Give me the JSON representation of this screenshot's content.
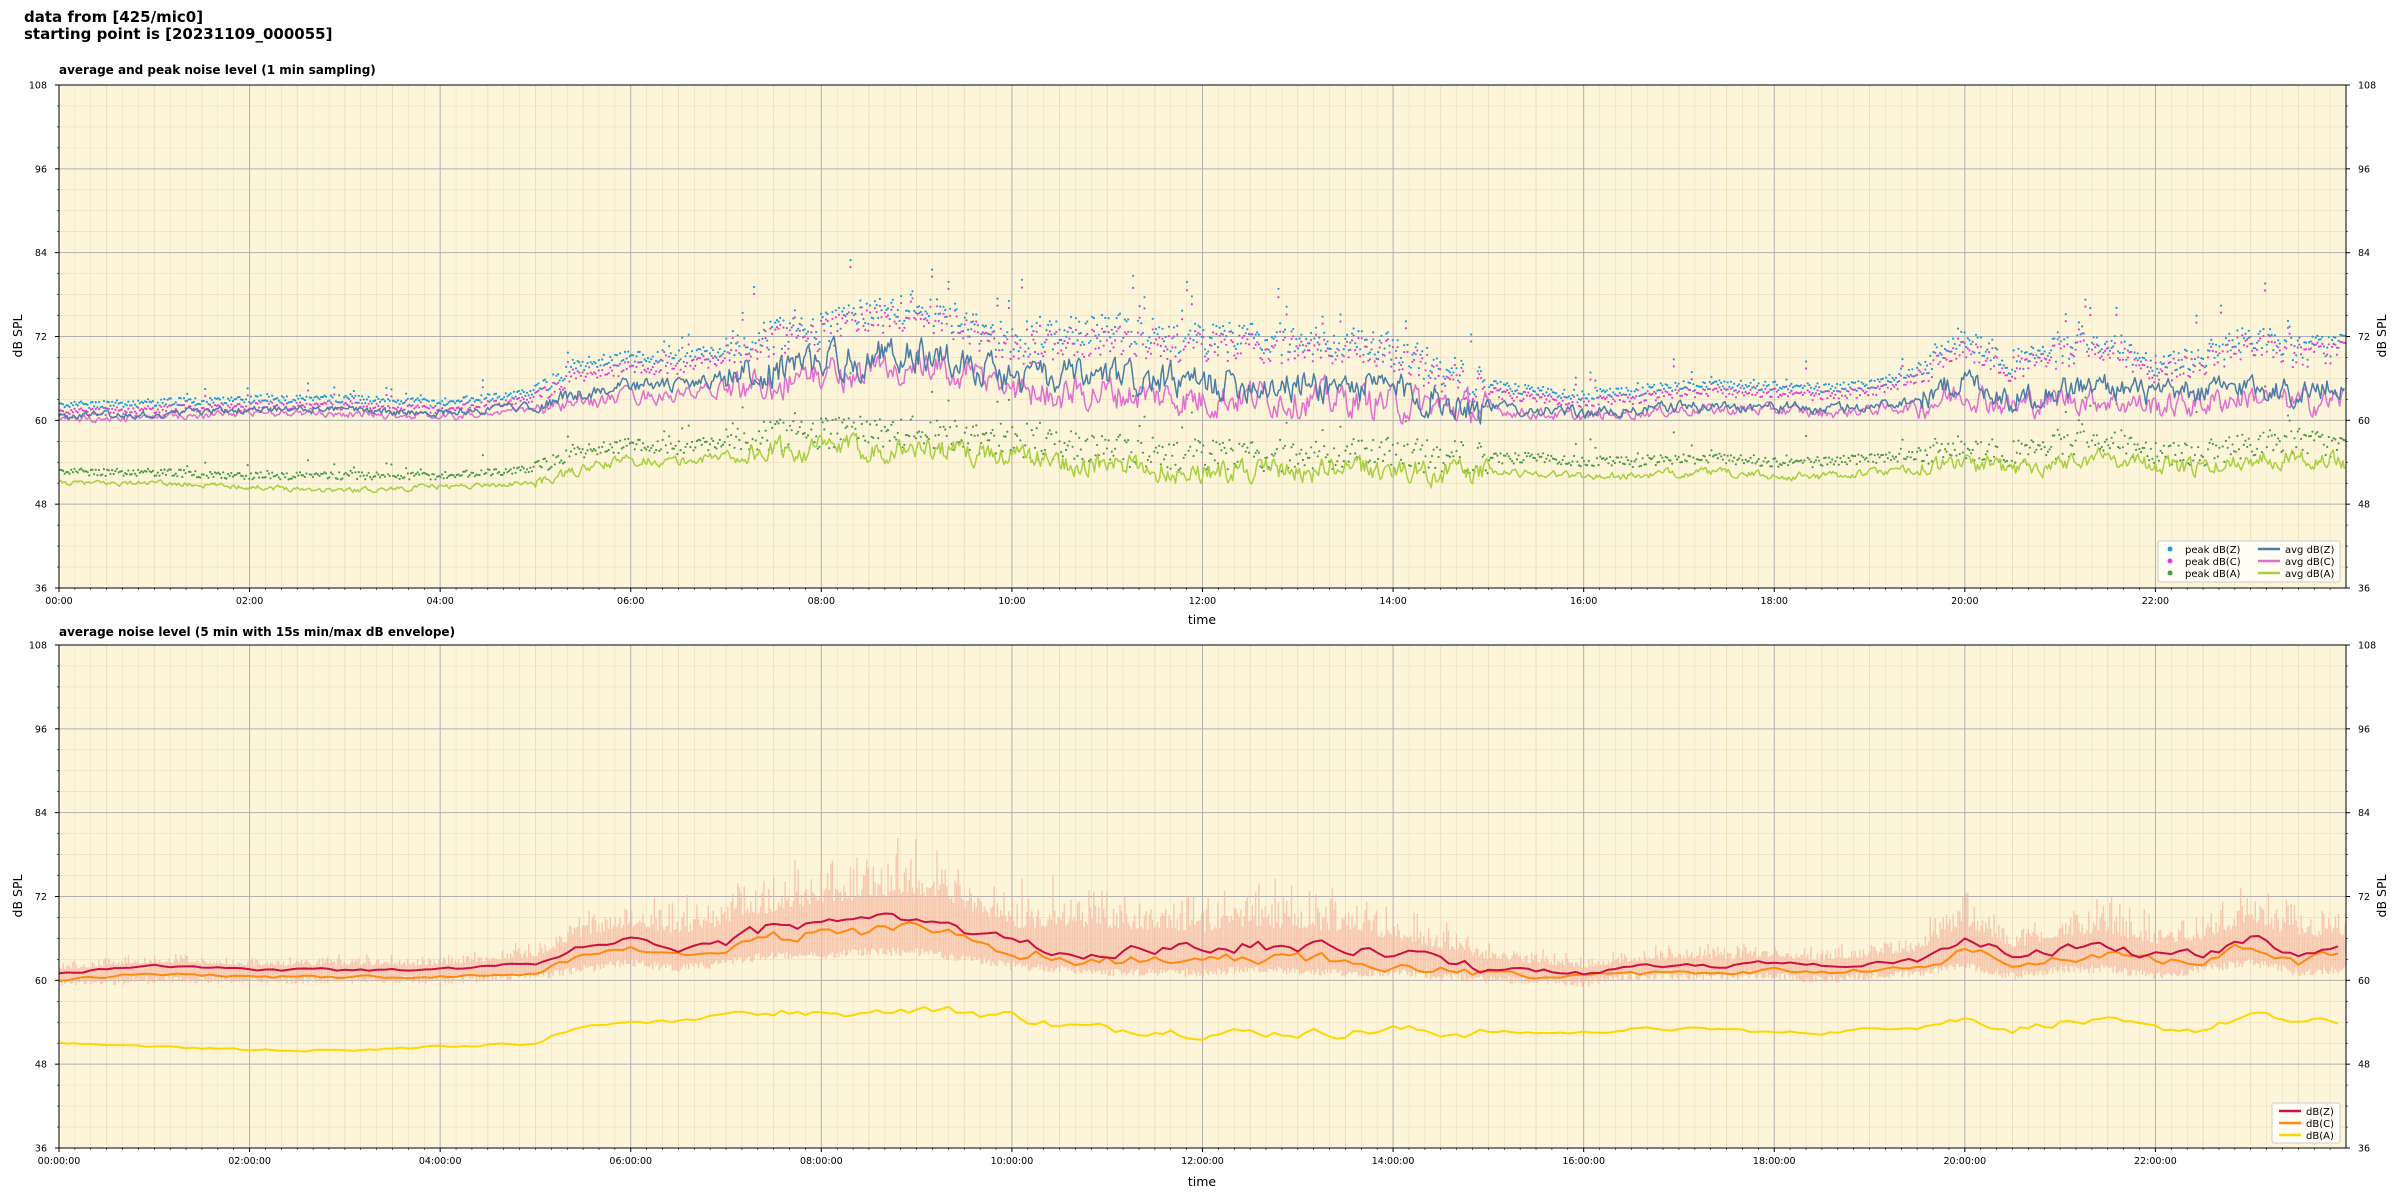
{
  "header": {
    "line1": "data from [425/mic0]",
    "line2": "starting point is [20231109_000055]"
  },
  "colors": {
    "plot_bg": "#fdf5da",
    "grid_major": "#b0b0b0",
    "grid_minor": "#e8dcb8",
    "peak_z": "#1f9bd7",
    "peak_c": "#e040d0",
    "peak_a": "#4a9a4a",
    "avg_z": "#4a7ea8",
    "avg_c": "#e070d0",
    "avg_a": "#a8d040",
    "env": "#f4b8a0",
    "line_z": "#cc1040",
    "line_c": "#ff8a10",
    "line_a": "#ffd700"
  },
  "chart_data": [
    {
      "type": "line",
      "title": "average and peak noise level (1 min sampling)",
      "xlabel": "time",
      "ylabel": "dB SPL",
      "ylim": [
        36,
        108
      ],
      "xlim_hours": [
        0,
        24
      ],
      "y_ticks": [
        "36",
        "48",
        "60",
        "72",
        "84",
        "96",
        "108"
      ],
      "x_ticks": [
        "00:00",
        "02:00",
        "04:00",
        "06:00",
        "08:00",
        "10:00",
        "12:00",
        "14:00",
        "16:00",
        "18:00",
        "20:00",
        "22:00"
      ],
      "grid": true,
      "legend_position": "bottom-right",
      "x_hours": [
        0,
        1,
        2,
        3,
        4,
        5,
        5.5,
        6,
        6.5,
        7,
        7.5,
        8,
        8.5,
        9,
        9.5,
        10,
        10.5,
        11,
        11.5,
        12,
        12.5,
        13,
        13.5,
        14,
        14.5,
        15,
        15.5,
        16,
        16.5,
        17,
        17.5,
        18,
        18.5,
        19,
        19.5,
        20,
        20.5,
        21,
        21.5,
        22,
        22.5,
        23,
        23.5,
        24
      ],
      "series": [
        {
          "name": "avg dB(Z)",
          "kind": "line",
          "values": [
            60.5,
            61,
            61.5,
            61.5,
            61,
            62,
            64,
            65,
            65,
            66,
            67,
            68.5,
            69,
            70,
            68.5,
            66,
            66,
            66,
            65.5,
            65,
            65.5,
            65,
            65,
            64.5,
            63,
            62,
            61.5,
            61,
            61.5,
            62,
            62,
            62,
            61.5,
            62,
            63,
            66,
            63,
            64.5,
            65,
            63.5,
            64,
            65,
            64,
            65
          ]
        },
        {
          "name": "avg dB(C)",
          "kind": "line",
          "values": [
            60,
            60.5,
            61,
            61,
            60.5,
            61.5,
            62.5,
            63.5,
            63.5,
            64.5,
            65.5,
            66.5,
            67,
            67.5,
            66.5,
            64.5,
            64,
            64,
            63.5,
            63,
            63.5,
            63,
            63,
            62.5,
            62,
            61.5,
            61,
            60.5,
            61,
            61.5,
            61.5,
            61.5,
            61,
            61.5,
            62,
            64,
            62,
            63,
            63,
            62,
            62.5,
            63.5,
            62.5,
            63
          ]
        },
        {
          "name": "avg dB(A)",
          "kind": "line",
          "values": [
            51,
            51,
            50.5,
            50,
            50.5,
            51,
            53,
            54.5,
            54,
            55,
            55.5,
            56,
            56,
            56,
            55.5,
            55,
            54,
            53.5,
            53,
            52.5,
            53,
            52.5,
            53,
            53,
            52.5,
            52.5,
            52.5,
            52,
            52,
            52.5,
            52.5,
            52,
            52,
            52.5,
            53,
            54,
            53,
            54,
            55,
            53.5,
            53,
            54.5,
            55,
            54
          ]
        },
        {
          "name": "peak dB(Z)",
          "kind": "scatter",
          "values": [
            62,
            62.5,
            63,
            63,
            62.5,
            64,
            68,
            69,
            69,
            70,
            72,
            73,
            75,
            76,
            74,
            71,
            72,
            73,
            72,
            71,
            72,
            71,
            71,
            70,
            67,
            65,
            64,
            63.5,
            64,
            65,
            65,
            65,
            64.5,
            65,
            67,
            72,
            68,
            70,
            71,
            68,
            69,
            72,
            70,
            71
          ]
        },
        {
          "name": "peak dB(C)",
          "kind": "scatter",
          "values": [
            61,
            61.5,
            62,
            62,
            61.5,
            63,
            66.5,
            67.5,
            67.5,
            69,
            71,
            72,
            74,
            75,
            73,
            70,
            70.5,
            71,
            70.5,
            70,
            70.5,
            70,
            70,
            69,
            66,
            64,
            63,
            62.5,
            63,
            64,
            64,
            64,
            63.5,
            64,
            66,
            70.5,
            67,
            69,
            70,
            67,
            68,
            71,
            69,
            70
          ]
        },
        {
          "name": "peak dB(A)",
          "kind": "scatter",
          "values": [
            52.5,
            52.5,
            52,
            52,
            52,
            53,
            55.5,
            56.5,
            56,
            57,
            57.5,
            58,
            58,
            58,
            57.5,
            57,
            56,
            55.5,
            55,
            54.5,
            55,
            54.5,
            55,
            55,
            54.5,
            54.5,
            54.5,
            54,
            54,
            54.5,
            54.5,
            54,
            54,
            54.5,
            55,
            56,
            55,
            56,
            57,
            55.5,
            55,
            56.5,
            57,
            56
          ]
        }
      ]
    },
    {
      "type": "line",
      "title": "average noise level (5 min with 15s min/max dB envelope)",
      "xlabel": "time",
      "ylabel": "dB SPL",
      "ylim": [
        36,
        108
      ],
      "xlim_hours": [
        0,
        24
      ],
      "y_ticks": [
        "36",
        "48",
        "60",
        "72",
        "84",
        "96",
        "108"
      ],
      "x_ticks": [
        "00:00:00",
        "02:00:00",
        "04:00:00",
        "06:00:00",
        "08:00:00",
        "10:00:00",
        "12:00:00",
        "14:00:00",
        "16:00:00",
        "18:00:00",
        "20:00:00",
        "22:00:00"
      ],
      "grid": true,
      "legend_position": "bottom-right",
      "x_hours": [
        0,
        1,
        2,
        3,
        4,
        5,
        5.5,
        6,
        6.5,
        7,
        7.5,
        8,
        8.5,
        9,
        9.5,
        10,
        10.5,
        11,
        11.5,
        12,
        12.5,
        13,
        13.5,
        14,
        14.5,
        15,
        15.5,
        16,
        16.5,
        17,
        17.5,
        18,
        18.5,
        19,
        19.5,
        20,
        20.5,
        21,
        21.5,
        22,
        22.5,
        23,
        23.5,
        24
      ],
      "series": [
        {
          "name": "dB(Z)",
          "kind": "line",
          "values": [
            61,
            62,
            61.5,
            61.5,
            61.5,
            62.5,
            65,
            66,
            64.5,
            65.5,
            67.5,
            68,
            68.5,
            69,
            67.5,
            65,
            64.5,
            64,
            64.5,
            64.5,
            65,
            64.5,
            64.5,
            63.5,
            63,
            62,
            61.5,
            61,
            62,
            62,
            62,
            62.5,
            62,
            62.5,
            63,
            66,
            63.5,
            64.5,
            64.5,
            63.5,
            64,
            66,
            64,
            65
          ]
        },
        {
          "name": "dB(C)",
          "kind": "line",
          "values": [
            60,
            61,
            60.5,
            60.5,
            60.5,
            61,
            63.5,
            64.5,
            63.5,
            64,
            66,
            66.5,
            67,
            67.5,
            66,
            64,
            63.5,
            63,
            63,
            63,
            63.5,
            63,
            63,
            62.5,
            62,
            61.5,
            60.5,
            60.5,
            61,
            61,
            61,
            61.5,
            61,
            61.5,
            62,
            64.5,
            62.5,
            63,
            63.5,
            62.5,
            63,
            65,
            62.5,
            64
          ]
        },
        {
          "name": "dB(A)",
          "kind": "line",
          "values": [
            51,
            50.5,
            50,
            50,
            50.5,
            51,
            53.5,
            54.5,
            54,
            55,
            55,
            55.5,
            55.5,
            56,
            55.5,
            55,
            53.5,
            53,
            53,
            52.5,
            52.5,
            52.5,
            52.5,
            53,
            52.5,
            52.5,
            52.5,
            52.5,
            53,
            53,
            53,
            52.5,
            52.5,
            53,
            53.5,
            54.5,
            53,
            54,
            54,
            53,
            53,
            55,
            54,
            54
          ]
        },
        {
          "name": "envelope max",
          "kind": "envelope",
          "values": [
            63,
            64,
            64,
            64,
            64,
            66,
            70,
            73,
            73,
            75,
            77,
            80,
            81,
            82,
            78,
            75,
            77,
            78,
            75,
            74,
            76,
            75,
            75,
            73,
            69,
            66,
            65,
            64,
            65,
            66,
            66,
            66,
            65,
            66,
            68,
            74,
            68,
            71,
            74,
            70,
            71,
            75,
            72,
            70
          ]
        },
        {
          "name": "envelope min",
          "kind": "envelope",
          "values": [
            59,
            59.5,
            59.5,
            59.5,
            59.5,
            60,
            61,
            62,
            61,
            62,
            63,
            63,
            63.5,
            63.5,
            62.5,
            61.5,
            61,
            60.5,
            60.5,
            60.5,
            61,
            60.5,
            60.5,
            60.5,
            60,
            59.5,
            59.5,
            59,
            60,
            60,
            60,
            60,
            59.5,
            60,
            60.5,
            61.5,
            60,
            61,
            61,
            60,
            61,
            62,
            60.5,
            61
          ]
        }
      ]
    }
  ],
  "legends": {
    "top": {
      "peak_z": "peak dB(Z)",
      "peak_c": "peak dB(C)",
      "peak_a": "peak dB(A)",
      "avg_z": "avg dB(Z)",
      "avg_c": "avg dB(C)",
      "avg_a": "avg dB(A)"
    },
    "bottom": {
      "z": "dB(Z)",
      "c": "dB(C)",
      "a": "dB(A)"
    }
  }
}
